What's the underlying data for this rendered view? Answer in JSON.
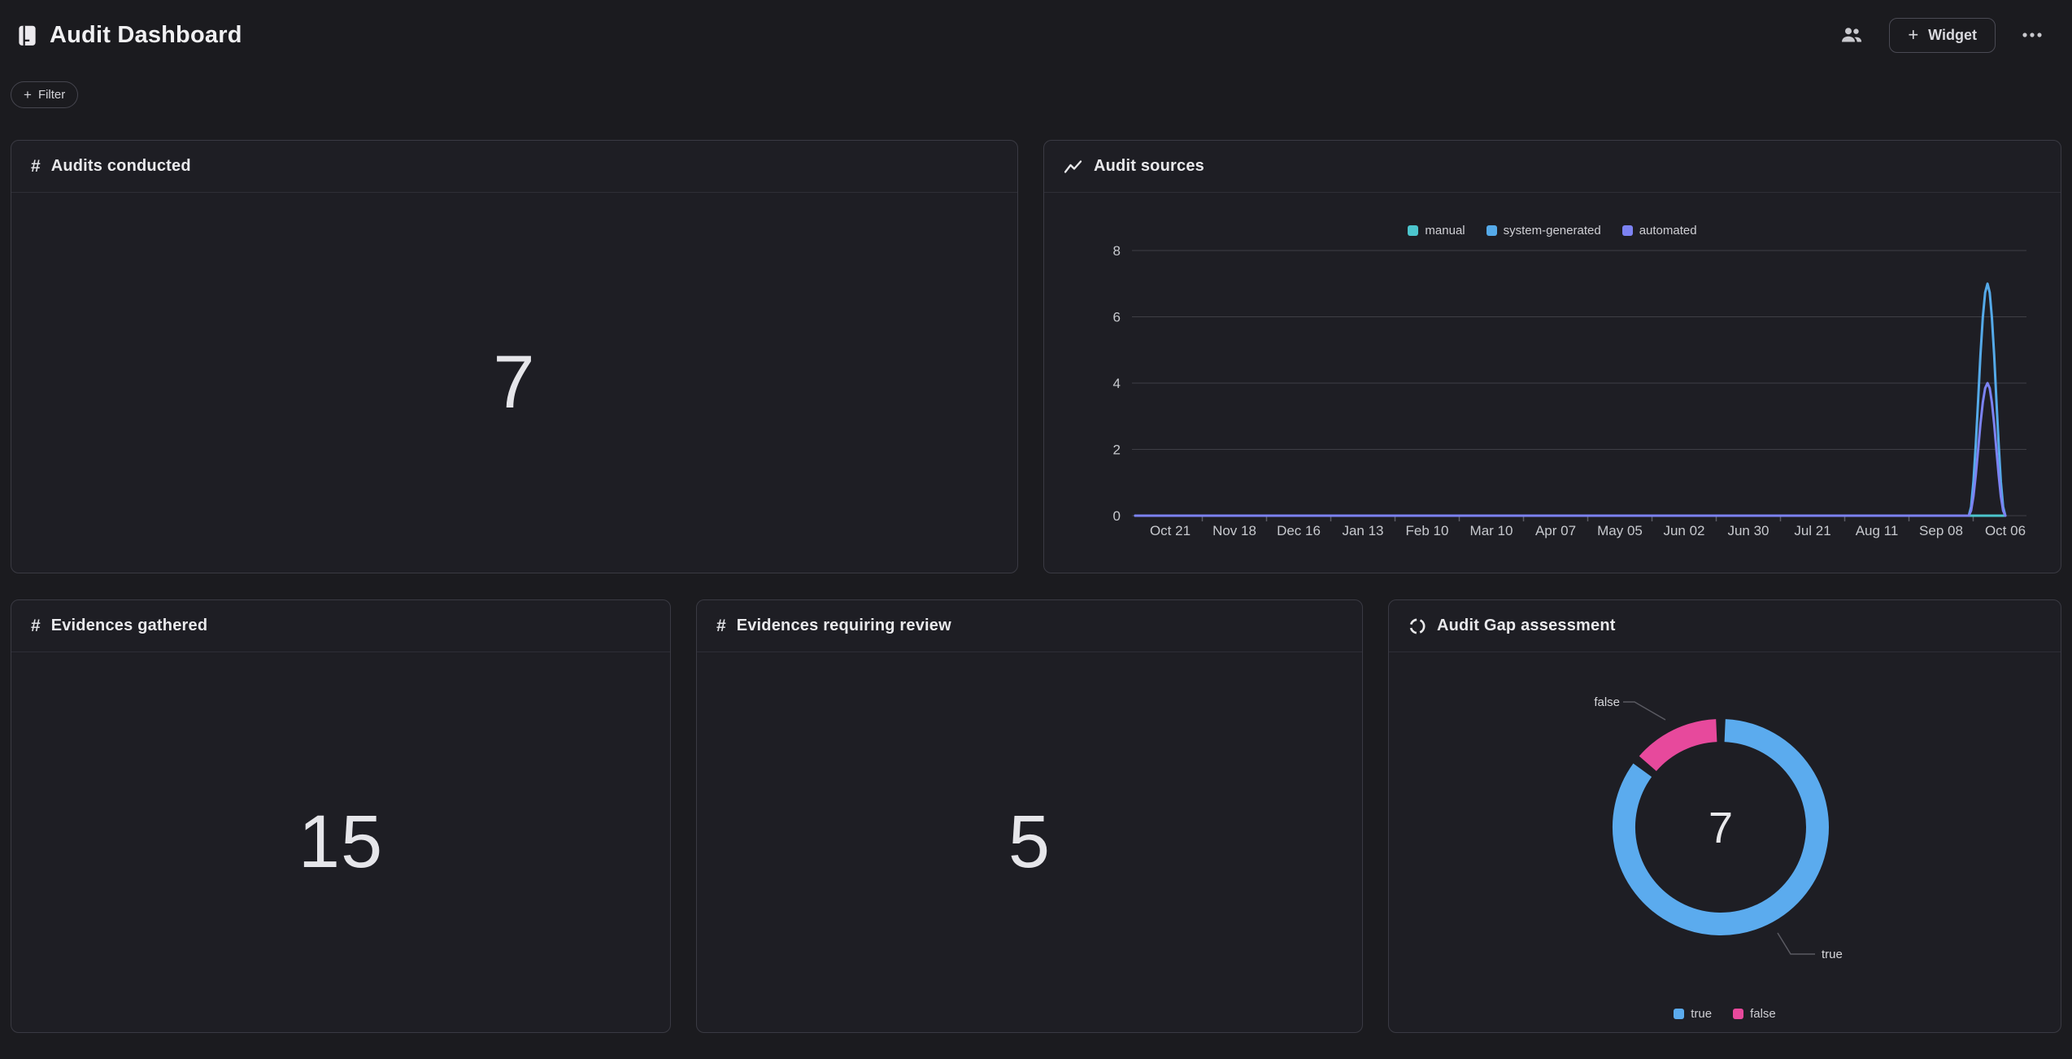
{
  "header": {
    "title": "Audit Dashboard",
    "add_widget_label": "Widget",
    "plus": "+"
  },
  "toolbar": {
    "filter_label": "Filter",
    "plus": "+"
  },
  "icons": {
    "hash": "#",
    "book-icon": "notebook glyph",
    "people-icon": "two-person silhouette",
    "more-icon": "horizontal ellipsis",
    "trend-icon": "zigzag line",
    "donut-icon": "dashed circle"
  },
  "colors": {
    "page_bg": "#1b1b1f",
    "card_bg": "#1e1e24",
    "card_border": "#3a3a43",
    "grid_line": "#3f3f46",
    "axis_text": "#c7c9ce",
    "manual_teal": "#4cc5cd",
    "system_blue": "#55aae9",
    "automated_purple": "#7c82f2",
    "donut_true_blue": "#5babee",
    "donut_false_pink": "#e7499c"
  },
  "widgets": {
    "audits_conducted": {
      "title": "Audits conducted",
      "value": "7"
    },
    "audit_sources": {
      "title": "Audit sources"
    },
    "evidences_gathered": {
      "title": "Evidences gathered",
      "value": "15"
    },
    "evidences_review": {
      "title": "Evidences requiring review",
      "value": "5"
    },
    "audit_gap": {
      "title": "Audit Gap assessment",
      "center_value": "7"
    }
  },
  "chart_data": [
    {
      "type": "line",
      "title": "Audit sources",
      "x_tick_labels": [
        "Oct 21",
        "Nov 18",
        "Dec 16",
        "Jan 13",
        "Feb 10",
        "Mar 10",
        "Apr 07",
        "May 05",
        "Jun 02",
        "Jun 30",
        "Jul 21",
        "Aug 11",
        "Sep 08",
        "Oct 06"
      ],
      "ylim": [
        0,
        8
      ],
      "yticks": [
        0,
        2,
        4,
        6,
        8
      ],
      "grid": true,
      "legend_position": "top",
      "series": [
        {
          "name": "manual",
          "color": "#4cc5cd",
          "points": [
            [
              0,
              0
            ],
            [
              1,
              0
            ]
          ]
        },
        {
          "name": "system-generated",
          "color": "#55aae9",
          "points": [
            [
              0,
              0
            ],
            [
              0.9,
              0
            ],
            [
              0.958,
              0
            ],
            [
              0.9795,
              7
            ],
            [
              1,
              0
            ]
          ]
        },
        {
          "name": "automated",
          "color": "#7c82f2",
          "points": [
            [
              0,
              0
            ],
            [
              0.9,
              0
            ],
            [
              0.958,
              0
            ],
            [
              0.9795,
              4
            ],
            [
              1,
              0
            ]
          ]
        }
      ],
      "peak_note": "both non-manual series spike between Sep 08 and Oct 06: system-generated peaks at 7, automated at 4, all other weeks 0"
    },
    {
      "type": "donut",
      "title": "Audit Gap assessment",
      "total": 7,
      "center_label": "7",
      "slices": [
        {
          "label": "true",
          "value": 6,
          "color": "#5babee"
        },
        {
          "label": "false",
          "value": 1,
          "color": "#e7499c"
        }
      ],
      "legend_position": "bottom"
    }
  ]
}
